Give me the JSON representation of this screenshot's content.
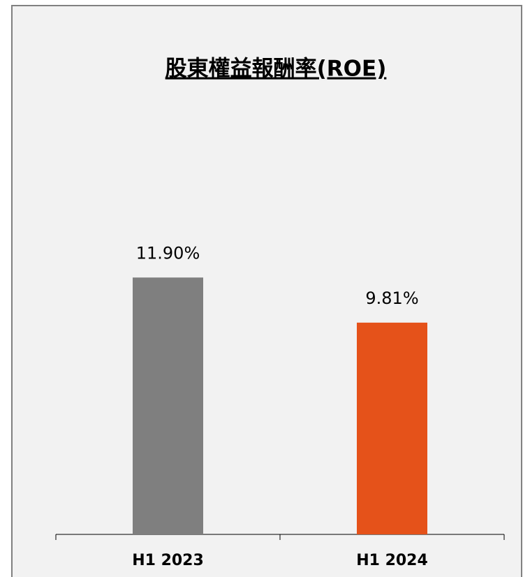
{
  "chart_data": {
    "type": "bar",
    "title": "股東權益報酬率(ROE)",
    "categories": [
      "H1 2023",
      "H1 2024"
    ],
    "values": [
      11.9,
      9.81
    ],
    "value_labels": [
      "11.90%",
      "9.81%"
    ],
    "colors": [
      "#7f7f7f",
      "#e5521a"
    ]
  }
}
